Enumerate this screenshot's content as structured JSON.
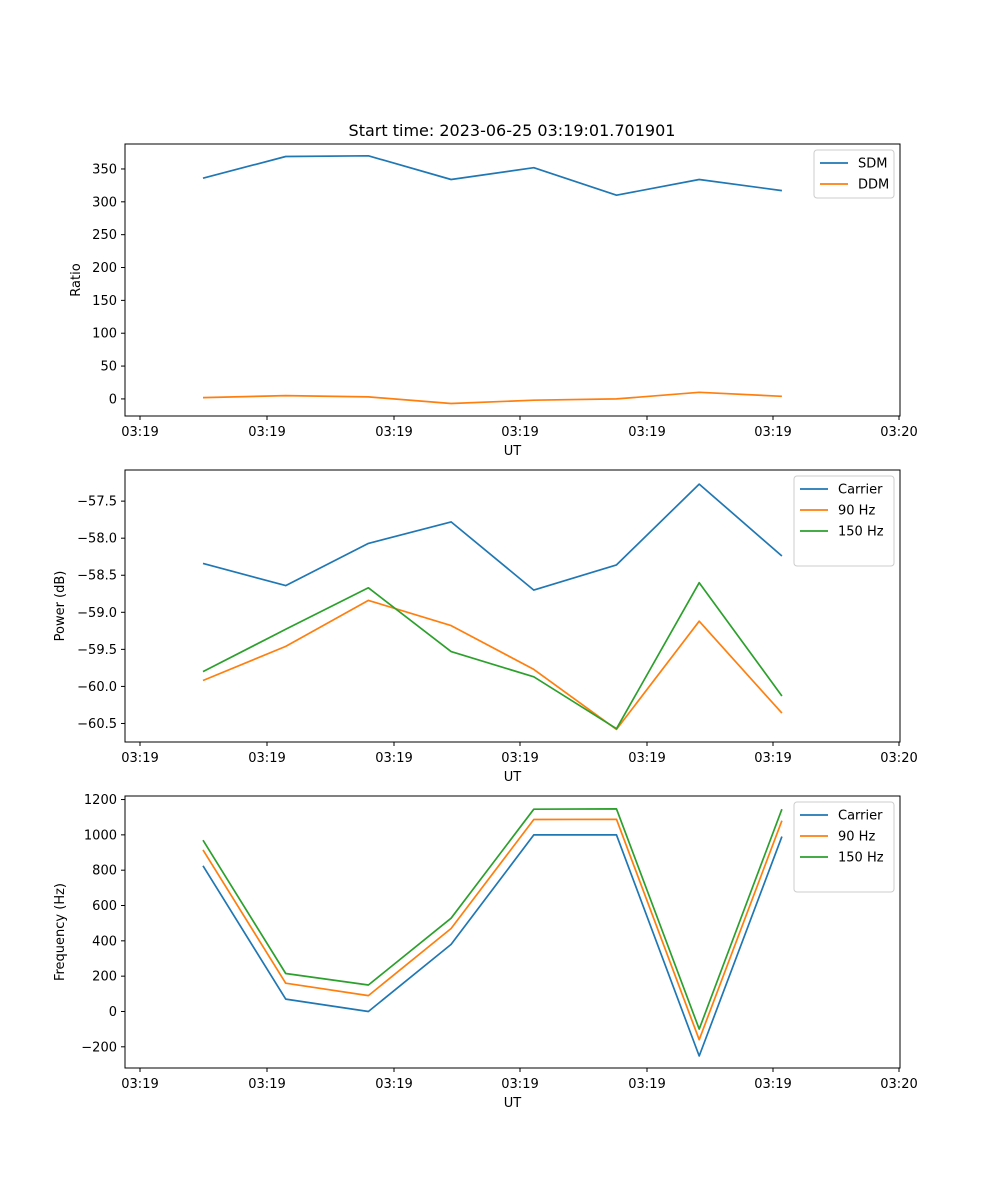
{
  "chart_data": [
    {
      "type": "line",
      "title": "Start time: 2023-06-25 03:19:01.701901",
      "xlabel": "UT",
      "ylabel": "Ratio",
      "x_tick_labels": [
        "03:19",
        "03:19",
        "03:19",
        "03:19",
        "03:19",
        "03:19",
        "03:20"
      ],
      "y_ticks": [
        0,
        50,
        100,
        150,
        200,
        250,
        300,
        350
      ],
      "ylim": [
        -26,
        388
      ],
      "legend": "top-right",
      "grid": false,
      "series": [
        {
          "name": "SDM",
          "color": "#1f77b4",
          "values": [
            336,
            369,
            370,
            334,
            352,
            310,
            334,
            317
          ]
        },
        {
          "name": "DDM",
          "color": "#ff7f0e",
          "values": [
            2,
            5,
            3,
            -7,
            -2,
            0,
            10,
            4
          ]
        }
      ]
    },
    {
      "type": "line",
      "title": "",
      "xlabel": "UT",
      "ylabel": "Power (dB)",
      "x_tick_labels": [
        "03:19",
        "03:19",
        "03:19",
        "03:19",
        "03:19",
        "03:19",
        "03:20"
      ],
      "y_ticks": [
        -60.5,
        -60.0,
        -59.5,
        -59.0,
        -58.5,
        -58.0,
        -57.5
      ],
      "y_tick_labels": [
        "−60.5",
        "−60.0",
        "−59.5",
        "−59.0",
        "−58.5",
        "−58.0",
        "−57.5"
      ],
      "ylim": [
        -60.75,
        -57.08
      ],
      "legend": "top-right",
      "grid": false,
      "series": [
        {
          "name": "Carrier",
          "color": "#1f77b4",
          "values": [
            -58.34,
            -58.64,
            -58.07,
            -57.78,
            -58.7,
            -58.36,
            -57.27,
            -58.24
          ]
        },
        {
          "name": "90 Hz",
          "color": "#ff7f0e",
          "values": [
            -59.92,
            -59.46,
            -58.84,
            -59.18,
            -59.77,
            -60.58,
            -59.12,
            -60.36
          ]
        },
        {
          "name": "150 Hz",
          "color": "#2ca02c",
          "values": [
            -59.8,
            -59.23,
            -58.67,
            -59.53,
            -59.87,
            -60.57,
            -58.6,
            -60.13
          ]
        }
      ]
    },
    {
      "type": "line",
      "title": "",
      "xlabel": "UT",
      "ylabel": "Frequency (Hz)",
      "x_tick_labels": [
        "03:19",
        "03:19",
        "03:19",
        "03:19",
        "03:19",
        "03:19",
        "03:20"
      ],
      "y_ticks": [
        -200,
        0,
        200,
        400,
        600,
        800,
        1000,
        1200
      ],
      "y_tick_labels": [
        "−200",
        "0",
        "200",
        "400",
        "600",
        "800",
        "1000",
        "1200"
      ],
      "ylim": [
        -320,
        1220
      ],
      "legend": "top-right",
      "grid": false,
      "series": [
        {
          "name": "Carrier",
          "color": "#1f77b4",
          "values": [
            825,
            70,
            0,
            380,
            1000,
            1000,
            -252,
            990
          ]
        },
        {
          "name": "90 Hz",
          "color": "#ff7f0e",
          "values": [
            915,
            160,
            90,
            470,
            1087,
            1088,
            -160,
            1080
          ]
        },
        {
          "name": "150 Hz",
          "color": "#2ca02c",
          "values": [
            970,
            215,
            150,
            528,
            1145,
            1147,
            -100,
            1145
          ]
        }
      ]
    }
  ]
}
